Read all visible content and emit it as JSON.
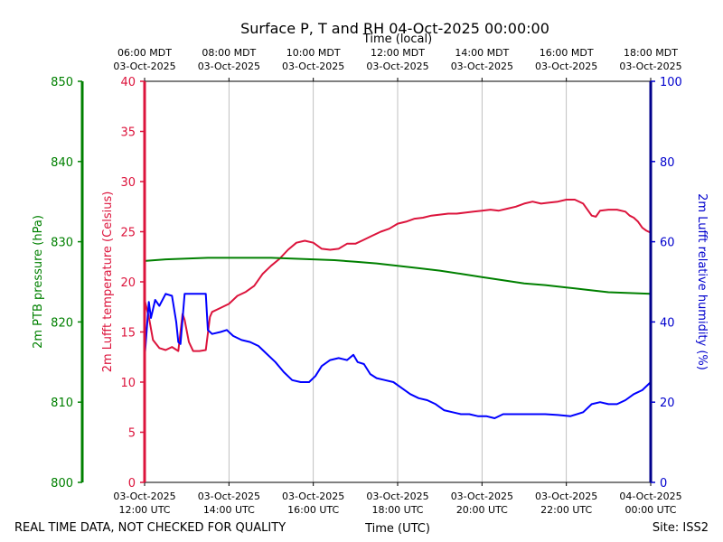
{
  "chart_data": {
    "type": "line",
    "title": "Surface P, T and RH 04-Oct-2025 00:00:00",
    "top_axis_title": "Time (local)",
    "xlabel": "Time (UTC)",
    "footer_left": "REAL TIME DATA, NOT CHECKED FOR QUALITY",
    "footer_right": "Site: ISS2",
    "x_range_hours_utc": [
      12,
      24
    ],
    "top_ticks": [
      {
        "t": 12,
        "line1": "06:00 MDT",
        "line2": "03-Oct-2025"
      },
      {
        "t": 14,
        "line1": "08:00 MDT",
        "line2": "03-Oct-2025"
      },
      {
        "t": 16,
        "line1": "10:00 MDT",
        "line2": "03-Oct-2025"
      },
      {
        "t": 18,
        "line1": "12:00 MDT",
        "line2": "03-Oct-2025"
      },
      {
        "t": 20,
        "line1": "14:00 MDT",
        "line2": "03-Oct-2025"
      },
      {
        "t": 22,
        "line1": "16:00 MDT",
        "line2": "03-Oct-2025"
      },
      {
        "t": 24,
        "line1": "18:00 MDT",
        "line2": "03-Oct-2025"
      }
    ],
    "bottom_ticks": [
      {
        "t": 12,
        "line1": "03-Oct-2025",
        "line2": "12:00 UTC"
      },
      {
        "t": 14,
        "line1": "03-Oct-2025",
        "line2": "14:00 UTC"
      },
      {
        "t": 16,
        "line1": "03-Oct-2025",
        "line2": "16:00 UTC"
      },
      {
        "t": 18,
        "line1": "03-Oct-2025",
        "line2": "18:00 UTC"
      },
      {
        "t": 20,
        "line1": "03-Oct-2025",
        "line2": "20:00 UTC"
      },
      {
        "t": 22,
        "line1": "03-Oct-2025",
        "line2": "22:00 UTC"
      },
      {
        "t": 24,
        "line1": "04-Oct-2025",
        "line2": "00:00 UTC"
      }
    ],
    "axes": {
      "pressure": {
        "label": "2m PTB pressure (hPa)",
        "range": [
          800,
          850
        ],
        "ticks": [
          800,
          810,
          820,
          830,
          840,
          850
        ],
        "color": "#008000"
      },
      "temperature": {
        "label": "2m Lufft temperature (Celsius)",
        "range": [
          0,
          40
        ],
        "ticks": [
          0,
          5,
          10,
          15,
          20,
          25,
          30,
          35,
          40
        ],
        "color": "#dc143c"
      },
      "humidity": {
        "label": "2m Lufft relative humidity (%)",
        "range": [
          0,
          100
        ],
        "ticks": [
          0,
          20,
          40,
          60,
          80,
          100
        ],
        "color": "#0000cd"
      }
    },
    "series": [
      {
        "name": "2m Lufft temperature",
        "axis": "temperature",
        "color": "#dc143c",
        "points": [
          [
            12.0,
            18.2
          ],
          [
            12.1,
            16.5
          ],
          [
            12.2,
            14.2
          ],
          [
            12.35,
            13.4
          ],
          [
            12.5,
            13.2
          ],
          [
            12.65,
            13.5
          ],
          [
            12.8,
            13.1
          ],
          [
            12.9,
            16.8
          ],
          [
            12.95,
            16.2
          ],
          [
            13.05,
            14.0
          ],
          [
            13.15,
            13.1
          ],
          [
            13.3,
            13.1
          ],
          [
            13.45,
            13.2
          ],
          [
            13.55,
            16.5
          ],
          [
            13.6,
            17.0
          ],
          [
            13.8,
            17.4
          ],
          [
            14.0,
            17.8
          ],
          [
            14.2,
            18.6
          ],
          [
            14.4,
            19.0
          ],
          [
            14.6,
            19.6
          ],
          [
            14.8,
            20.8
          ],
          [
            15.0,
            21.6
          ],
          [
            15.2,
            22.3
          ],
          [
            15.4,
            23.2
          ],
          [
            15.6,
            23.9
          ],
          [
            15.8,
            24.1
          ],
          [
            16.0,
            23.9
          ],
          [
            16.2,
            23.3
          ],
          [
            16.4,
            23.2
          ],
          [
            16.6,
            23.3
          ],
          [
            16.8,
            23.8
          ],
          [
            17.0,
            23.8
          ],
          [
            17.2,
            24.2
          ],
          [
            17.4,
            24.6
          ],
          [
            17.6,
            25.0
          ],
          [
            17.8,
            25.3
          ],
          [
            18.0,
            25.8
          ],
          [
            18.2,
            26.0
          ],
          [
            18.4,
            26.3
          ],
          [
            18.6,
            26.4
          ],
          [
            18.8,
            26.6
          ],
          [
            19.0,
            26.7
          ],
          [
            19.2,
            26.8
          ],
          [
            19.4,
            26.8
          ],
          [
            19.6,
            26.9
          ],
          [
            19.8,
            27.0
          ],
          [
            20.0,
            27.1
          ],
          [
            20.2,
            27.2
          ],
          [
            20.4,
            27.1
          ],
          [
            20.6,
            27.3
          ],
          [
            20.8,
            27.5
          ],
          [
            21.0,
            27.8
          ],
          [
            21.2,
            28.0
          ],
          [
            21.4,
            27.8
          ],
          [
            21.6,
            27.9
          ],
          [
            21.8,
            28.0
          ],
          [
            22.0,
            28.2
          ],
          [
            22.2,
            28.2
          ],
          [
            22.4,
            27.8
          ],
          [
            22.5,
            27.2
          ],
          [
            22.6,
            26.6
          ],
          [
            22.7,
            26.5
          ],
          [
            22.8,
            27.1
          ],
          [
            23.0,
            27.2
          ],
          [
            23.2,
            27.2
          ],
          [
            23.4,
            27.0
          ],
          [
            23.5,
            26.6
          ],
          [
            23.6,
            26.4
          ],
          [
            23.7,
            26.0
          ],
          [
            23.8,
            25.4
          ],
          [
            23.9,
            25.1
          ],
          [
            24.0,
            24.9
          ]
        ]
      },
      {
        "name": "2m PTB pressure",
        "axis": "pressure",
        "color": "#008000",
        "points": [
          [
            12.0,
            827.6
          ],
          [
            12.5,
            827.8
          ],
          [
            13.0,
            827.9
          ],
          [
            13.5,
            828.0
          ],
          [
            14.0,
            828.0
          ],
          [
            14.5,
            828.0
          ],
          [
            15.0,
            828.0
          ],
          [
            15.5,
            827.9
          ],
          [
            16.0,
            827.8
          ],
          [
            16.5,
            827.7
          ],
          [
            17.0,
            827.5
          ],
          [
            17.5,
            827.3
          ],
          [
            18.0,
            827.0
          ],
          [
            18.5,
            826.7
          ],
          [
            19.0,
            826.4
          ],
          [
            19.5,
            826.0
          ],
          [
            20.0,
            825.6
          ],
          [
            20.5,
            825.2
          ],
          [
            21.0,
            824.8
          ],
          [
            21.5,
            824.6
          ],
          [
            22.0,
            824.3
          ],
          [
            22.5,
            824.0
          ],
          [
            23.0,
            823.7
          ],
          [
            23.5,
            823.6
          ],
          [
            24.0,
            823.5
          ]
        ]
      },
      {
        "name": "2m Lufft relative humidity",
        "axis": "humidity",
        "color": "#0000ff",
        "points": [
          [
            12.0,
            31.0
          ],
          [
            12.1,
            45.0
          ],
          [
            12.15,
            41.0
          ],
          [
            12.25,
            45.5
          ],
          [
            12.35,
            44.0
          ],
          [
            12.5,
            47.0
          ],
          [
            12.65,
            46.5
          ],
          [
            12.75,
            40.0
          ],
          [
            12.8,
            35.0
          ],
          [
            12.85,
            34.5
          ],
          [
            12.95,
            47.0
          ],
          [
            13.1,
            47.0
          ],
          [
            13.3,
            47.0
          ],
          [
            13.45,
            47.0
          ],
          [
            13.5,
            38.0
          ],
          [
            13.6,
            37.0
          ],
          [
            13.8,
            37.5
          ],
          [
            13.95,
            38.0
          ],
          [
            14.1,
            36.5
          ],
          [
            14.3,
            35.5
          ],
          [
            14.5,
            35.0
          ],
          [
            14.7,
            34.0
          ],
          [
            14.9,
            32.0
          ],
          [
            15.1,
            30.0
          ],
          [
            15.3,
            27.5
          ],
          [
            15.5,
            25.5
          ],
          [
            15.7,
            25.0
          ],
          [
            15.9,
            25.0
          ],
          [
            16.05,
            26.5
          ],
          [
            16.2,
            29.0
          ],
          [
            16.4,
            30.5
          ],
          [
            16.6,
            31.0
          ],
          [
            16.8,
            30.5
          ],
          [
            16.95,
            31.8
          ],
          [
            17.05,
            30.0
          ],
          [
            17.2,
            29.5
          ],
          [
            17.35,
            27.0
          ],
          [
            17.5,
            26.0
          ],
          [
            17.7,
            25.5
          ],
          [
            17.9,
            25.0
          ],
          [
            18.1,
            23.5
          ],
          [
            18.3,
            22.0
          ],
          [
            18.5,
            21.0
          ],
          [
            18.7,
            20.5
          ],
          [
            18.9,
            19.5
          ],
          [
            19.1,
            18.0
          ],
          [
            19.3,
            17.5
          ],
          [
            19.5,
            17.0
          ],
          [
            19.7,
            17.0
          ],
          [
            19.9,
            16.5
          ],
          [
            20.1,
            16.5
          ],
          [
            20.3,
            16.0
          ],
          [
            20.5,
            17.0
          ],
          [
            20.7,
            17.0
          ],
          [
            20.9,
            17.0
          ],
          [
            21.2,
            17.0
          ],
          [
            21.5,
            17.0
          ],
          [
            21.8,
            16.8
          ],
          [
            22.1,
            16.5
          ],
          [
            22.4,
            17.5
          ],
          [
            22.6,
            19.5
          ],
          [
            22.8,
            20.0
          ],
          [
            23.0,
            19.5
          ],
          [
            23.2,
            19.5
          ],
          [
            23.4,
            20.5
          ],
          [
            23.6,
            22.0
          ],
          [
            23.8,
            23.0
          ],
          [
            24.0,
            25.0
          ]
        ]
      }
    ]
  }
}
